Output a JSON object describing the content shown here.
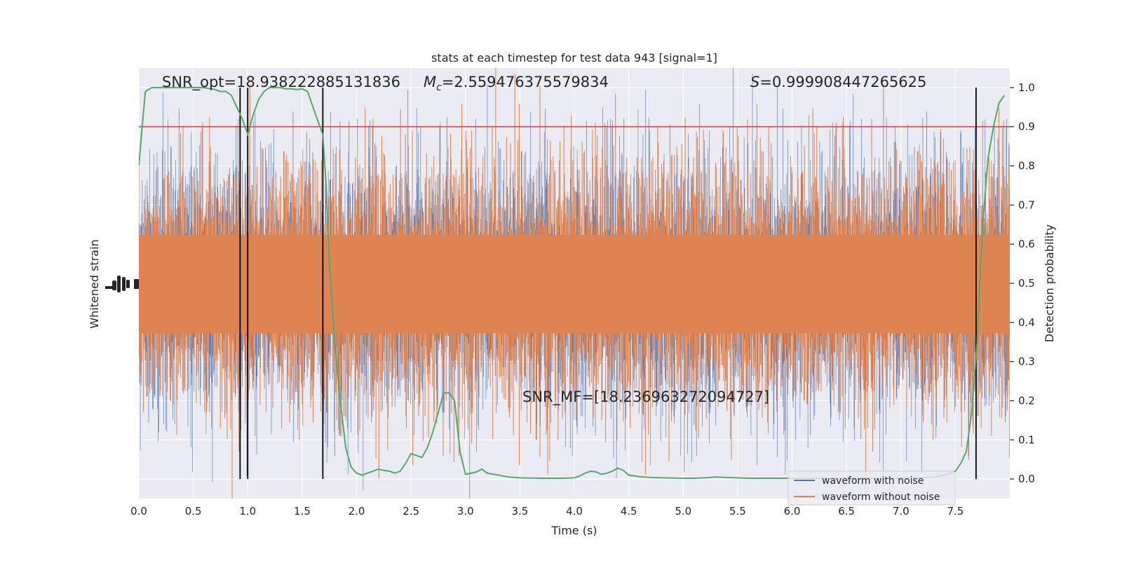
{
  "chart_data": {
    "type": "line",
    "title": "stats at each timestep for test data 943 [signal=1]",
    "xlabel": "Time (s)",
    "ylabel_left": "Whitened strain",
    "ylabel_right": "Detection probability",
    "xlim": [
      0.0,
      8.0
    ],
    "ylim_right": [
      -0.05,
      1.05
    ],
    "x_ticks": [
      "0.0",
      "0.5",
      "1.0",
      "1.5",
      "2.0",
      "2.5",
      "3.0",
      "3.5",
      "4.0",
      "4.5",
      "5.0",
      "5.5",
      "6.0",
      "6.5",
      "7.0",
      "7.5"
    ],
    "y_ticks_right": [
      "0.0",
      "0.1",
      "0.2",
      "0.3",
      "0.4",
      "0.5",
      "0.6",
      "0.7",
      "0.8",
      "0.9",
      "1.0"
    ],
    "grid": true,
    "annotations": {
      "snr_opt": "SNR_opt=18.938222885131836",
      "mc_symbol": "M",
      "mc_sub": "c",
      "mc_value": "=2.559476375579834",
      "s_symbol": "S",
      "s_value": "=0.999908447265625",
      "snr_mf": "SNR_MF=[18.236963272094727]"
    },
    "threshold": 0.9,
    "vertical_lines": [
      0.93,
      1.0,
      1.69,
      7.69
    ],
    "legend": {
      "placement": "lower-right",
      "entries": [
        "waveform with noise",
        "waveform without noise"
      ]
    },
    "series": [
      {
        "name": "Detection probability",
        "x": [
          0.0,
          0.03,
          0.06,
          0.12,
          0.2,
          0.3,
          0.4,
          0.5,
          0.6,
          0.7,
          0.75,
          0.8,
          0.85,
          0.9,
          0.95,
          1.0,
          1.05,
          1.1,
          1.15,
          1.2,
          1.25,
          1.3,
          1.35,
          1.4,
          1.45,
          1.5,
          1.55,
          1.6,
          1.65,
          1.69,
          1.72,
          1.75,
          1.8,
          1.85,
          1.9,
          1.95,
          2.0,
          2.05,
          2.1,
          2.15,
          2.2,
          2.25,
          2.3,
          2.35,
          2.4,
          2.45,
          2.5,
          2.55,
          2.6,
          2.65,
          2.7,
          2.75,
          2.8,
          2.85,
          2.9,
          2.95,
          3.0,
          3.1,
          3.15,
          3.2,
          3.3,
          3.4,
          3.5,
          3.7,
          3.9,
          4.0,
          4.05,
          4.1,
          4.15,
          4.2,
          4.25,
          4.3,
          4.35,
          4.4,
          4.45,
          4.5,
          4.6,
          4.7,
          4.8,
          5.0,
          5.1,
          5.2,
          5.3,
          5.4,
          5.6,
          5.8,
          6.0,
          6.5,
          7.0,
          7.2,
          7.3,
          7.4,
          7.45,
          7.5,
          7.55,
          7.6,
          7.65,
          7.7,
          7.75,
          7.8,
          7.85,
          7.9,
          7.95
        ],
        "y": [
          0.8,
          0.9,
          0.99,
          1.0,
          1.0,
          1.0,
          1.0,
          1.0,
          1.0,
          0.995,
          0.99,
          0.99,
          0.98,
          0.95,
          0.92,
          0.88,
          0.93,
          0.97,
          0.99,
          1.0,
          1.0,
          1.0,
          0.997,
          0.997,
          0.995,
          0.997,
          0.99,
          0.95,
          0.91,
          0.88,
          0.75,
          0.55,
          0.35,
          0.2,
          0.08,
          0.03,
          0.015,
          0.01,
          0.015,
          0.02,
          0.025,
          0.022,
          0.02,
          0.015,
          0.02,
          0.04,
          0.065,
          0.06,
          0.055,
          0.08,
          0.12,
          0.17,
          0.22,
          0.22,
          0.2,
          0.07,
          0.012,
          0.018,
          0.025,
          0.015,
          0.01,
          0.005,
          0.003,
          0.002,
          0.002,
          0.003,
          0.008,
          0.015,
          0.02,
          0.018,
          0.012,
          0.015,
          0.02,
          0.028,
          0.022,
          0.01,
          0.006,
          0.004,
          0.003,
          0.002,
          0.002,
          0.003,
          0.005,
          0.004,
          0.002,
          0.002,
          0.002,
          0.002,
          0.002,
          0.003,
          0.005,
          0.01,
          0.015,
          0.02,
          0.04,
          0.07,
          0.17,
          0.35,
          0.65,
          0.82,
          0.9,
          0.96,
          0.98
        ]
      }
    ]
  }
}
